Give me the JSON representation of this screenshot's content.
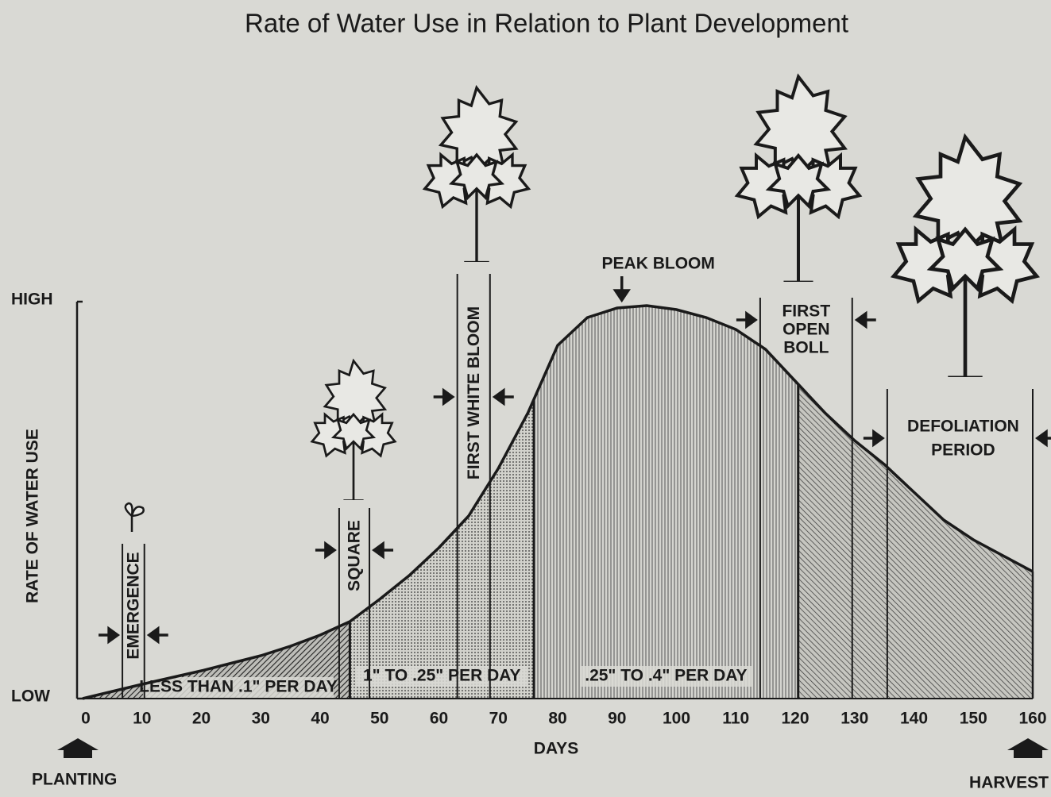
{
  "chart_data": {
    "type": "area",
    "title": "Rate of Water Use in Relation to Plant Development",
    "xlabel": "DAYS",
    "ylabel": "RATE OF WATER USE",
    "x": [
      0,
      5,
      10,
      15,
      20,
      25,
      30,
      35,
      40,
      45,
      50,
      55,
      60,
      65,
      70,
      75,
      80,
      85,
      90,
      95,
      100,
      105,
      110,
      115,
      120,
      125,
      130,
      135,
      140,
      145,
      150,
      155,
      160
    ],
    "values": [
      0,
      1.8,
      3.6,
      5.3,
      7,
      8.9,
      10.8,
      13.2,
      16,
      19.4,
      25,
      31,
      38,
      46,
      58,
      72,
      89,
      96,
      98.4,
      99,
      98,
      96,
      93,
      88,
      80,
      72,
      65,
      59,
      52,
      45,
      40,
      36,
      32
    ],
    "color": "#1a1a1a",
    "xlim": [
      0,
      160
    ],
    "xticks": [
      0,
      10,
      20,
      30,
      40,
      50,
      60,
      70,
      80,
      90,
      100,
      110,
      120,
      130,
      140,
      150,
      160
    ],
    "ylim": [
      0,
      100
    ],
    "yticks": [
      {
        "value": 0,
        "label": "LOW"
      },
      {
        "value": 100,
        "label": "HIGH"
      }
    ],
    "bands": [
      {
        "from": 0,
        "to": 45,
        "label": "LESS THAN .1\" PER DAY"
      },
      {
        "from": 45,
        "to": 76,
        "label": "1\" TO .25\" PER DAY"
      },
      {
        "from": 76,
        "to": 120.5,
        "label": ".25\" TO .4\" PER DAY"
      },
      {
        "from": 120.5,
        "to": 160
      }
    ],
    "stages": [
      {
        "from": 6.7,
        "to": 10.4,
        "label": [
          "EMERGENCE"
        ]
      },
      {
        "from": 43.2,
        "to": 48.3,
        "label": [
          "SQUARE"
        ]
      },
      {
        "from": 63.1,
        "to": 68.6,
        "label": [
          "FIRST WHITE BLOOM"
        ]
      },
      {
        "from": 114.1,
        "to": 129.6,
        "label": [
          "FIRST",
          "OPEN",
          "BOLL"
        ]
      },
      {
        "from": 135.5,
        "to": 160,
        "label": [
          "DEFOLIATION",
          "PERIOD"
        ]
      }
    ],
    "peak": {
      "x": 90.8,
      "label": "PEAK BLOOM"
    },
    "start_label": "PLANTING",
    "end_label": "HARVEST"
  }
}
